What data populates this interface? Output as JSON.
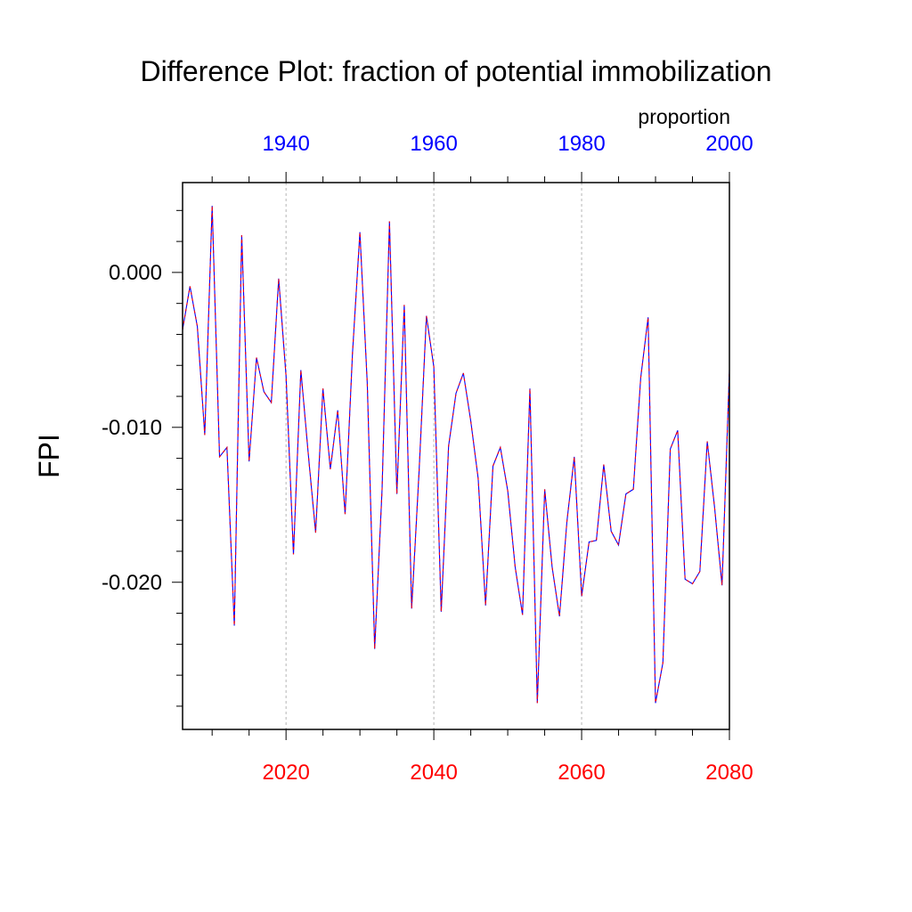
{
  "chart_data": {
    "type": "line",
    "title": "Difference Plot: fraction of potential immobilization",
    "units_label": "proportion",
    "ylabel": "FPI",
    "xlabel": "",
    "ylim": [
      -0.0295,
      0.0058
    ],
    "y_ticks": [
      "0.000",
      "-0.010",
      "-0.020"
    ],
    "y_tick_values": [
      0.0,
      -0.01,
      -0.02
    ],
    "x_bottom": {
      "range": [
        2006,
        2080
      ],
      "ticks": [
        "2020",
        "2040",
        "2060",
        "2080"
      ],
      "tick_values": [
        2020,
        2040,
        2060,
        2080
      ],
      "color": "#ff0000"
    },
    "x_top": {
      "range": [
        1926,
        2000
      ],
      "ticks": [
        "1940",
        "1960",
        "1980",
        "2000"
      ],
      "tick_values": [
        1940,
        1960,
        1980,
        2000
      ],
      "color": "#0000ff"
    },
    "grid": "vertical-dashed",
    "series": [
      {
        "line_color": "#0000ff",
        "dash_color": "#ff0000",
        "x": [
          2006,
          2007,
          2008,
          2009,
          2010,
          2011,
          2012,
          2013,
          2014,
          2015,
          2016,
          2017,
          2018,
          2019,
          2020,
          2021,
          2022,
          2023,
          2024,
          2025,
          2026,
          2027,
          2028,
          2029,
          2030,
          2031,
          2032,
          2033,
          2034,
          2035,
          2036,
          2037,
          2038,
          2039,
          2040,
          2041,
          2042,
          2043,
          2044,
          2045,
          2046,
          2047,
          2048,
          2049,
          2050,
          2051,
          2052,
          2053,
          2054,
          2055,
          2056,
          2057,
          2058,
          2059,
          2060,
          2061,
          2062,
          2063,
          2064,
          2065,
          2066,
          2067,
          2068,
          2069,
          2070,
          2071,
          2072,
          2073,
          2074,
          2075,
          2076,
          2077,
          2078,
          2079,
          2080
        ],
        "y": [
          -0.0037,
          -0.0009,
          -0.0035,
          -0.0105,
          0.0043,
          -0.0119,
          -0.0113,
          -0.0228,
          0.0024,
          -0.0122,
          -0.0055,
          -0.0077,
          -0.0084,
          -0.0004,
          -0.0067,
          -0.0182,
          -0.0063,
          -0.0117,
          -0.0168,
          -0.0075,
          -0.0127,
          -0.0089,
          -0.0156,
          -0.0052,
          0.0026,
          -0.0072,
          -0.0243,
          -0.014,
          0.0033,
          -0.0143,
          -0.0021,
          -0.0217,
          -0.0129,
          -0.0028,
          -0.0061,
          -0.0219,
          -0.0112,
          -0.0078,
          -0.0065,
          -0.0096,
          -0.0133,
          -0.0215,
          -0.0125,
          -0.0113,
          -0.0141,
          -0.019,
          -0.0221,
          -0.0075,
          -0.0278,
          -0.014,
          -0.019,
          -0.0222,
          -0.0161,
          -0.0119,
          -0.0209,
          -0.0174,
          -0.0173,
          -0.0124,
          -0.0167,
          -0.0176,
          -0.0143,
          -0.014,
          -0.0068,
          -0.0029,
          -0.0278,
          -0.0252,
          -0.0114,
          -0.0102,
          -0.0198,
          -0.0201,
          -0.0193,
          -0.0109,
          -0.0152,
          -0.0202,
          -0.0063
        ]
      }
    ]
  }
}
